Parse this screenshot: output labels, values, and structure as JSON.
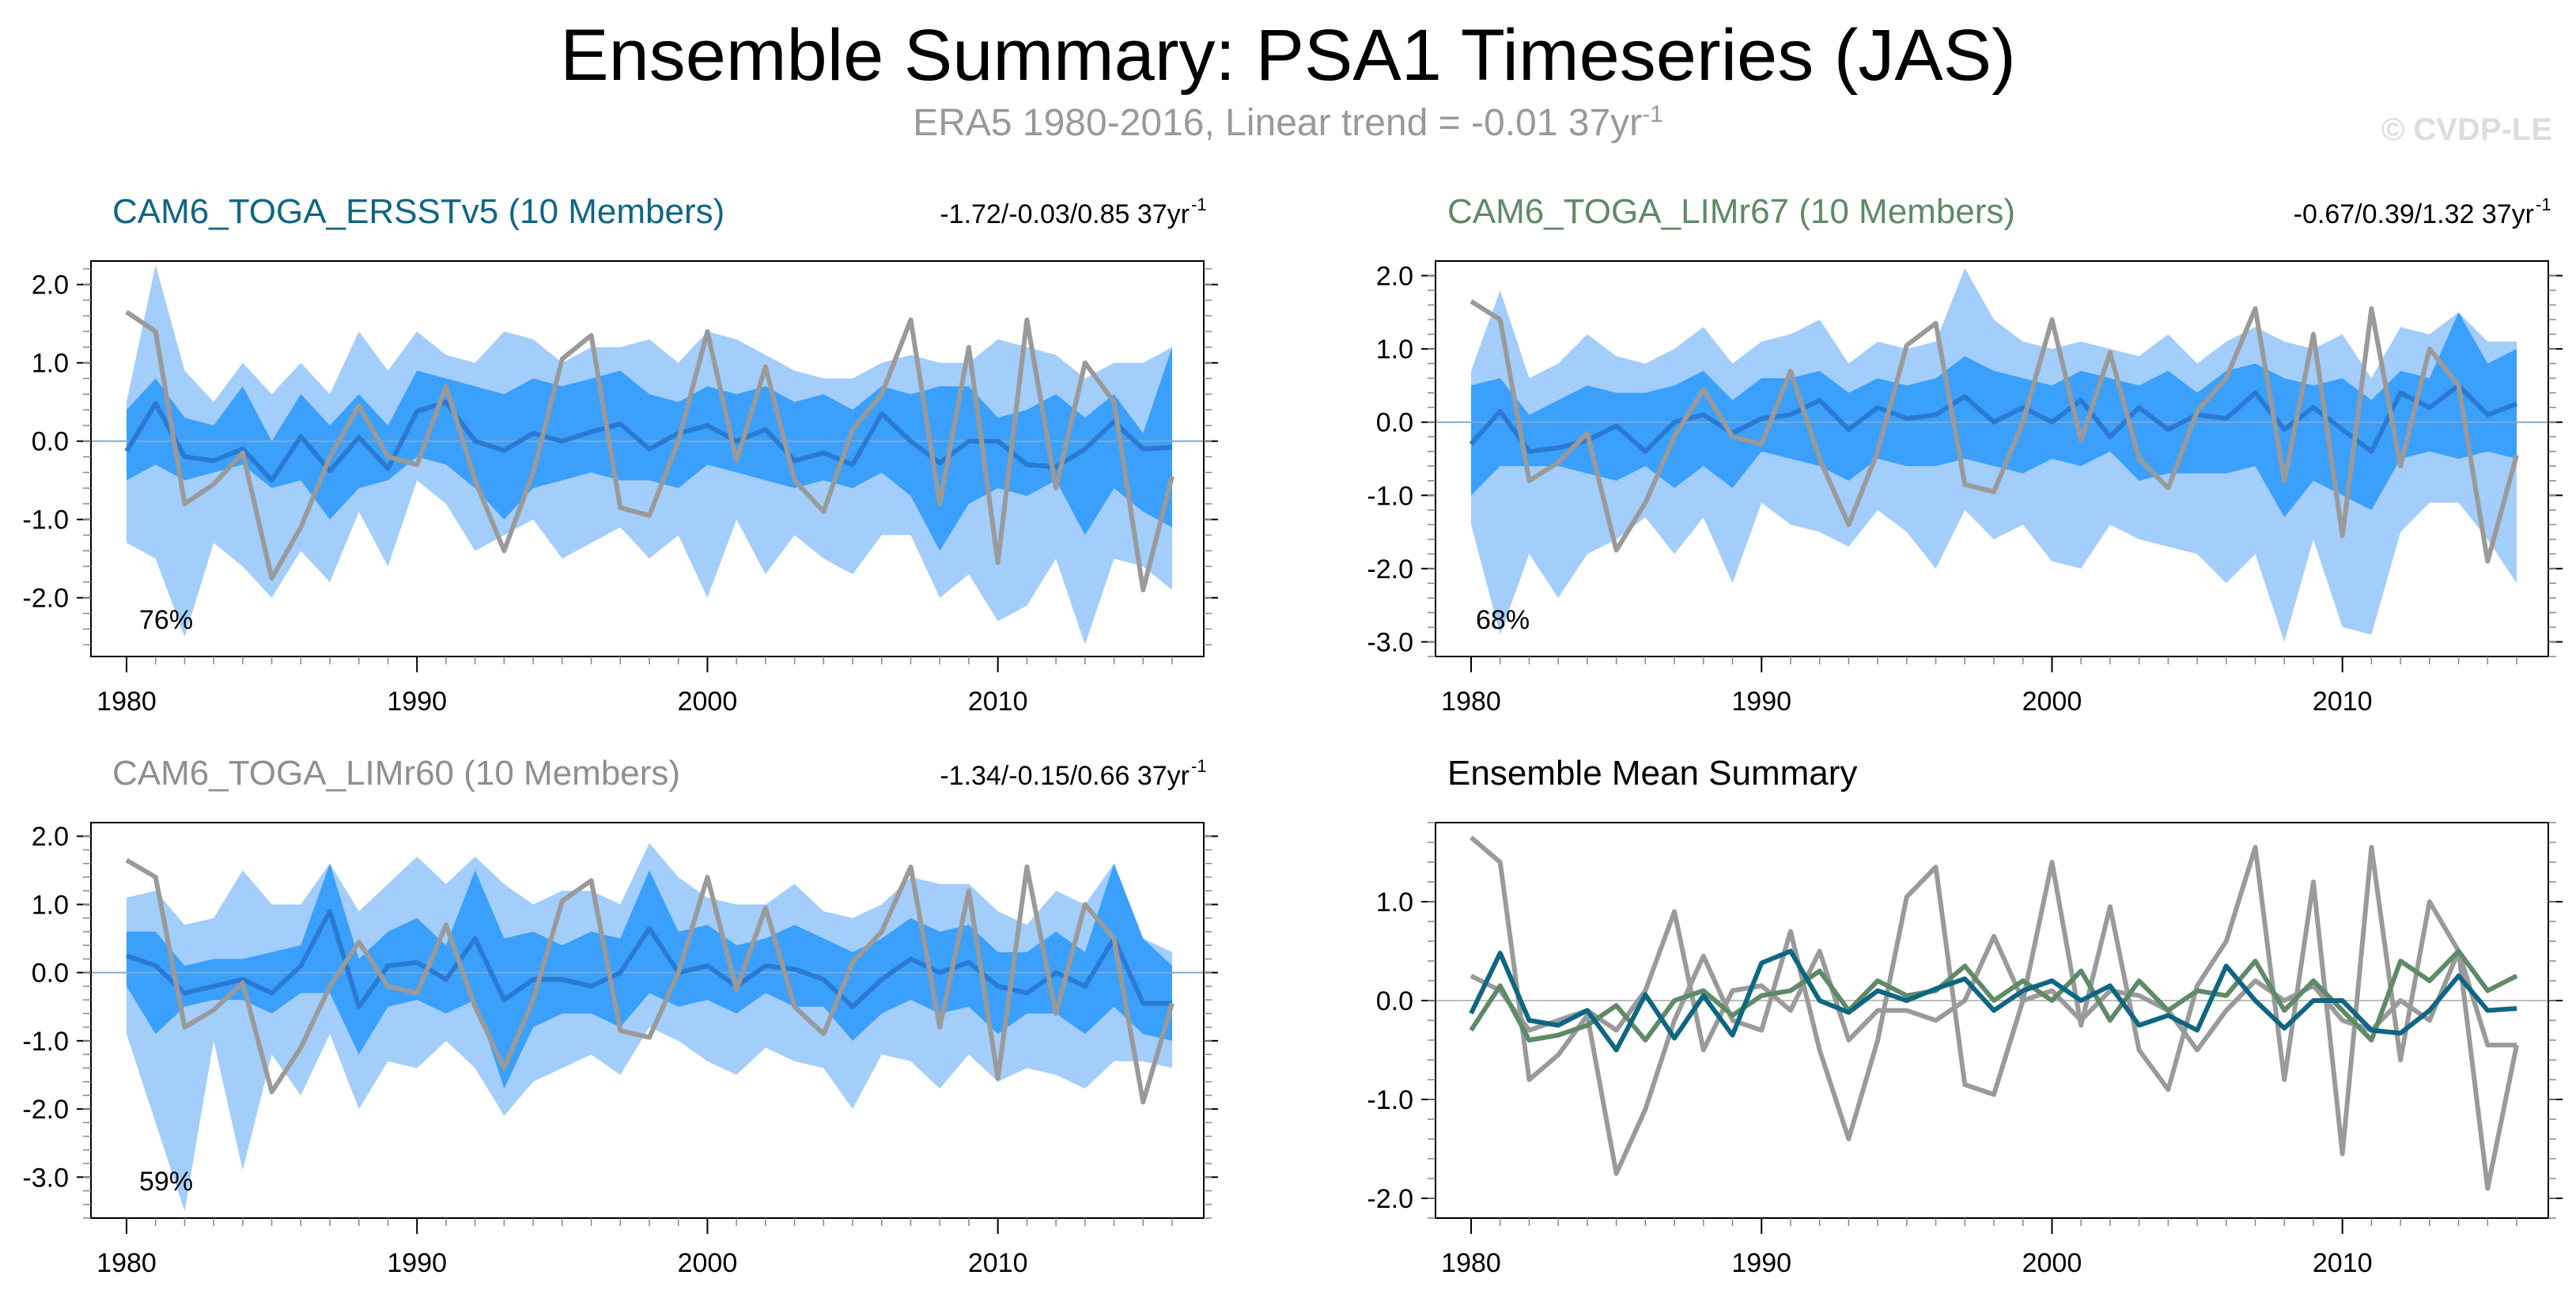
{
  "title": "Ensemble Summary: PSA1 Timeseries (JAS)",
  "subtitle": "ERA5 1980-2016, Linear trend = -0.01 37yr",
  "subtitle_sup": "-1",
  "copyright": "© CVDP-LE",
  "colors": {
    "light_band": "#a3cdfa",
    "dark_band": "#3aa0fb",
    "ens_mean": "#2a7ad4",
    "obs": "#9a9a9a",
    "ersst": "#0f6683",
    "limr67": "#5e8a67",
    "limr60": "#8f8f8f"
  },
  "chart_data": [
    {
      "id": "ersst",
      "type": "area",
      "title": "CAM6_TOGA_ERSSTv5 (10 Members)",
      "title_color": "#0f6683",
      "trend_text": "-1.72/-0.03/0.85 37yr",
      "trend_sup": "-1",
      "percent": "76%",
      "xlim": [
        1980,
        2016
      ],
      "ylim": [
        -2.75,
        2.3
      ],
      "xticks": [
        "1980",
        "1990",
        "2000",
        "2010"
      ],
      "yticks": [
        "2.0",
        "1.0",
        "0.0",
        "-1.0",
        "-2.0"
      ],
      "x": [
        1980,
        1981,
        1982,
        1983,
        1984,
        1985,
        1986,
        1987,
        1988,
        1989,
        1990,
        1991,
        1992,
        1993,
        1994,
        1995,
        1996,
        1997,
        1998,
        1999,
        2000,
        2001,
        2002,
        2003,
        2004,
        2005,
        2006,
        2007,
        2008,
        2009,
        2010,
        2011,
        2012,
        2013,
        2014,
        2015,
        2016
      ],
      "min": [
        -1.3,
        -1.5,
        -2.5,
        -1.3,
        -1.6,
        -2.0,
        -1.4,
        -1.8,
        -0.9,
        -1.6,
        -0.5,
        -0.8,
        -1.4,
        -1.2,
        -1.0,
        -1.5,
        -1.3,
        -1.1,
        -1.5,
        -1.2,
        -2.0,
        -1.0,
        -1.7,
        -1.2,
        -1.5,
        -1.7,
        -1.2,
        -1.2,
        -2.0,
        -1.7,
        -2.3,
        -2.1,
        -1.5,
        -2.6,
        -1.5,
        -1.6,
        -1.9
      ],
      "p10": [
        -0.5,
        -0.3,
        -0.5,
        -0.4,
        -0.3,
        -0.6,
        -0.5,
        -1.0,
        -0.6,
        -0.5,
        -0.2,
        -0.3,
        -0.6,
        -1.0,
        -0.6,
        -0.5,
        -0.4,
        -0.5,
        -0.5,
        -0.6,
        -0.3,
        -0.4,
        -0.5,
        -0.6,
        -0.5,
        -0.6,
        -0.4,
        -0.7,
        -1.4,
        -0.8,
        -0.6,
        -0.7,
        -0.5,
        -1.2,
        -0.6,
        -0.9,
        -1.1
      ],
      "p90": [
        0.4,
        0.8,
        0.3,
        0.2,
        0.7,
        0.0,
        0.6,
        0.2,
        0.6,
        0.2,
        0.9,
        0.8,
        0.7,
        0.6,
        0.8,
        0.7,
        0.8,
        0.9,
        0.6,
        0.5,
        0.7,
        0.6,
        0.7,
        0.5,
        0.6,
        0.4,
        0.7,
        0.6,
        0.7,
        0.7,
        0.3,
        0.4,
        0.6,
        0.3,
        0.6,
        0.1,
        1.2
      ],
      "max": [
        0.5,
        2.25,
        0.9,
        0.5,
        1.0,
        0.6,
        1.0,
        0.6,
        1.4,
        0.9,
        1.4,
        1.1,
        1.0,
        1.4,
        1.3,
        1.0,
        1.2,
        1.2,
        1.3,
        1.0,
        1.4,
        1.3,
        1.1,
        0.9,
        0.8,
        0.8,
        1.0,
        1.1,
        1.0,
        1.0,
        1.3,
        1.2,
        1.1,
        0.8,
        1.0,
        1.0,
        1.2
      ],
      "mean": [
        -0.13,
        0.48,
        -0.2,
        -0.25,
        -0.1,
        -0.5,
        0.06,
        -0.38,
        0.05,
        -0.35,
        0.38,
        0.5,
        0.0,
        -0.12,
        0.1,
        0.0,
        0.12,
        0.22,
        -0.1,
        0.1,
        0.2,
        0.0,
        0.15,
        -0.25,
        -0.15,
        -0.3,
        0.35,
        0.0,
        -0.28,
        0.0,
        0.0,
        -0.3,
        -0.33,
        -0.1,
        0.25,
        -0.1,
        -0.08
      ],
      "obs": [
        1.65,
        1.4,
        -0.8,
        -0.55,
        -0.15,
        -1.75,
        -1.1,
        -0.2,
        0.45,
        -0.2,
        -0.3,
        0.7,
        -0.5,
        -1.4,
        -0.4,
        1.05,
        1.35,
        -0.85,
        -0.95,
        0.0,
        1.4,
        -0.25,
        0.95,
        -0.5,
        -0.9,
        0.15,
        0.6,
        1.55,
        -0.8,
        1.2,
        -1.55,
        1.55,
        -0.6,
        1.0,
        0.5,
        -1.9,
        -0.45
      ]
    },
    {
      "id": "limr67",
      "type": "area",
      "title": "CAM6_TOGA_LIMr67 (10 Members)",
      "title_color": "#5e8a67",
      "trend_text": "-0.67/0.39/1.32 37yr",
      "trend_sup": "-1",
      "percent": "68%",
      "xlim": [
        1980,
        2016
      ],
      "ylim": [
        -3.2,
        2.2
      ],
      "xticks": [
        "1980",
        "1990",
        "2000",
        "2010"
      ],
      "yticks": [
        "2.0",
        "1.0",
        "0.0",
        "-1.0",
        "-2.0",
        "-3.0"
      ],
      "x": [
        1980,
        1981,
        1982,
        1983,
        1984,
        1985,
        1986,
        1987,
        1988,
        1989,
        1990,
        1991,
        1992,
        1993,
        1994,
        1995,
        1996,
        1997,
        1998,
        1999,
        2000,
        2001,
        2002,
        2003,
        2004,
        2005,
        2006,
        2007,
        2008,
        2009,
        2010,
        2011,
        2012,
        2013,
        2014,
        2015,
        2016
      ],
      "min": [
        -1.4,
        -2.9,
        -1.8,
        -2.4,
        -1.8,
        -1.6,
        -1.3,
        -1.8,
        -1.3,
        -2.2,
        -1.1,
        -1.4,
        -1.5,
        -1.7,
        -1.2,
        -1.5,
        -2.0,
        -1.2,
        -1.6,
        -1.4,
        -1.9,
        -2.0,
        -1.4,
        -1.6,
        -1.7,
        -1.8,
        -2.2,
        -1.8,
        -3.0,
        -1.6,
        -2.8,
        -2.9,
        -1.5,
        -1.1,
        -1.1,
        -1.6,
        -2.2
      ],
      "p10": [
        -1.0,
        -0.6,
        -0.6,
        -0.6,
        -0.7,
        -0.8,
        -0.6,
        -0.9,
        -0.6,
        -0.9,
        -0.4,
        -0.5,
        -0.6,
        -0.8,
        -0.5,
        -0.6,
        -0.6,
        -0.5,
        -0.6,
        -0.7,
        -0.5,
        -0.6,
        -0.4,
        -0.8,
        -0.7,
        -0.7,
        -0.7,
        -0.6,
        -1.3,
        -0.8,
        -1.0,
        -1.2,
        -0.5,
        -0.4,
        -0.5,
        -0.4,
        -0.5
      ],
      "p90": [
        0.5,
        0.6,
        0.1,
        0.3,
        0.5,
        0.4,
        0.4,
        0.5,
        0.7,
        0.3,
        0.6,
        0.6,
        0.7,
        0.4,
        0.6,
        0.5,
        0.6,
        0.9,
        0.7,
        0.6,
        0.5,
        0.7,
        0.6,
        0.5,
        0.7,
        0.4,
        0.7,
        0.8,
        0.6,
        0.5,
        0.6,
        0.3,
        0.7,
        0.6,
        1.5,
        0.8,
        1.0
      ],
      "max": [
        0.7,
        1.8,
        0.6,
        0.8,
        1.2,
        0.9,
        0.8,
        1.0,
        1.3,
        0.8,
        1.1,
        1.2,
        1.4,
        0.8,
        1.1,
        1.0,
        1.1,
        2.1,
        1.4,
        1.1,
        1.0,
        1.1,
        1.0,
        0.9,
        1.2,
        0.8,
        1.1,
        1.3,
        1.1,
        1.0,
        1.2,
        0.6,
        1.3,
        1.2,
        1.5,
        1.1,
        1.1
      ],
      "mean": [
        -0.3,
        0.15,
        -0.4,
        -0.35,
        -0.25,
        -0.05,
        -0.4,
        0.0,
        0.1,
        -0.15,
        0.05,
        0.1,
        0.3,
        -0.1,
        0.2,
        0.05,
        0.1,
        0.35,
        0.0,
        0.2,
        0.0,
        0.3,
        -0.2,
        0.2,
        -0.1,
        0.1,
        0.05,
        0.4,
        -0.1,
        0.2,
        -0.1,
        -0.4,
        0.4,
        0.2,
        0.5,
        0.1,
        0.25
      ],
      "obs": [
        1.65,
        1.4,
        -0.8,
        -0.55,
        -0.15,
        -1.75,
        -1.1,
        -0.2,
        0.45,
        -0.2,
        -0.3,
        0.7,
        -0.5,
        -1.4,
        -0.4,
        1.05,
        1.35,
        -0.85,
        -0.95,
        0.0,
        1.4,
        -0.25,
        0.95,
        -0.5,
        -0.9,
        0.15,
        0.6,
        1.55,
        -0.8,
        1.2,
        -1.55,
        1.55,
        -0.6,
        1.0,
        0.5,
        -1.9,
        -0.45
      ]
    },
    {
      "id": "limr60",
      "type": "area",
      "title": "CAM6_TOGA_LIMr60 (10 Members)",
      "title_color": "#8f8f8f",
      "trend_text": "-1.34/-0.15/0.66 37yr",
      "trend_sup": "-1",
      "percent": "59%",
      "xlim": [
        1980,
        2016
      ],
      "ylim": [
        -3.6,
        2.2
      ],
      "xticks": [
        "1980",
        "1990",
        "2000",
        "2010"
      ],
      "yticks": [
        "2.0",
        "1.0",
        "0.0",
        "-1.0",
        "-2.0",
        "-3.0"
      ],
      "x": [
        1980,
        1981,
        1982,
        1983,
        1984,
        1985,
        1986,
        1987,
        1988,
        1989,
        1990,
        1991,
        1992,
        1993,
        1994,
        1995,
        1996,
        1997,
        1998,
        1999,
        2000,
        2001,
        2002,
        2003,
        2004,
        2005,
        2006,
        2007,
        2008,
        2009,
        2010,
        2011,
        2012,
        2013,
        2014,
        2015,
        2016
      ],
      "min": [
        -0.9,
        -2.2,
        -3.5,
        -1.0,
        -2.9,
        -1.2,
        -1.8,
        -0.9,
        -2.0,
        -1.3,
        -1.4,
        -1.0,
        -1.4,
        -2.1,
        -1.6,
        -1.4,
        -1.2,
        -1.5,
        -0.8,
        -1.0,
        -1.3,
        -1.5,
        -1.1,
        -1.3,
        -1.4,
        -2.0,
        -1.2,
        -1.3,
        -1.7,
        -1.2,
        -1.6,
        -1.4,
        -1.5,
        -1.7,
        -1.3,
        -1.3,
        -1.4
      ],
      "p10": [
        -0.2,
        -0.9,
        -0.5,
        -0.4,
        -0.4,
        -0.6,
        -0.3,
        -0.3,
        -1.2,
        -0.5,
        -0.4,
        -0.6,
        -0.4,
        -1.7,
        -0.8,
        -0.6,
        -0.6,
        -0.8,
        -0.3,
        -0.5,
        -0.4,
        -0.6,
        -0.3,
        -0.5,
        -0.5,
        -1.0,
        -0.6,
        -0.4,
        -0.6,
        -0.5,
        -0.9,
        -0.6,
        -0.6,
        -0.9,
        -0.5,
        -0.9,
        -1.0
      ],
      "p90": [
        0.6,
        0.6,
        0.1,
        0.2,
        0.2,
        0.3,
        0.4,
        1.6,
        0.2,
        0.6,
        0.8,
        0.4,
        1.5,
        0.5,
        0.6,
        0.4,
        0.6,
        0.5,
        1.5,
        0.6,
        0.7,
        0.4,
        0.5,
        0.7,
        0.5,
        0.3,
        0.5,
        0.8,
        0.6,
        0.7,
        0.3,
        0.3,
        0.6,
        0.3,
        1.6,
        0.5,
        0.1
      ],
      "max": [
        1.1,
        1.2,
        0.7,
        0.8,
        1.5,
        1.0,
        1.0,
        1.6,
        0.9,
        1.3,
        1.7,
        1.3,
        1.7,
        1.3,
        1.0,
        1.2,
        1.2,
        1.0,
        1.9,
        1.4,
        1.1,
        1.0,
        1.0,
        1.3,
        0.9,
        0.8,
        1.0,
        1.4,
        1.3,
        1.3,
        0.9,
        0.7,
        1.2,
        1.0,
        1.6,
        0.5,
        0.3
      ],
      "mean": [
        0.25,
        0.1,
        -0.3,
        -0.2,
        -0.1,
        -0.3,
        0.1,
        0.9,
        -0.5,
        0.1,
        0.15,
        -0.1,
        0.5,
        -0.4,
        -0.1,
        -0.1,
        -0.2,
        0.0,
        0.65,
        0.0,
        0.1,
        -0.2,
        0.1,
        0.05,
        -0.1,
        -0.5,
        -0.1,
        0.2,
        0.0,
        0.15,
        -0.2,
        -0.3,
        0.0,
        -0.2,
        0.5,
        -0.45,
        -0.45
      ],
      "obs": [
        1.65,
        1.4,
        -0.8,
        -0.55,
        -0.15,
        -1.75,
        -1.1,
        -0.2,
        0.45,
        -0.2,
        -0.3,
        0.7,
        -0.5,
        -1.4,
        -0.4,
        1.05,
        1.35,
        -0.85,
        -0.95,
        0.0,
        1.4,
        -0.25,
        0.95,
        -0.5,
        -0.9,
        0.15,
        0.6,
        1.55,
        -0.8,
        1.2,
        -1.55,
        1.55,
        -0.6,
        1.0,
        0.5,
        -1.9,
        -0.45
      ]
    },
    {
      "id": "summary",
      "type": "line",
      "title": "Ensemble Mean Summary",
      "title_color": "#000000",
      "xlim": [
        1980,
        2016
      ],
      "ylim": [
        -2.2,
        1.8
      ],
      "xticks": [
        "1980",
        "1990",
        "2000",
        "2010"
      ],
      "yticks": [
        "1.0",
        "0.0",
        "-1.0",
        "-2.0"
      ],
      "x": [
        1980,
        1981,
        1982,
        1983,
        1984,
        1985,
        1986,
        1987,
        1988,
        1989,
        1990,
        1991,
        1992,
        1993,
        1994,
        1995,
        1996,
        1997,
        1998,
        1999,
        2000,
        2001,
        2002,
        2003,
        2004,
        2005,
        2006,
        2007,
        2008,
        2009,
        2010,
        2011,
        2012,
        2013,
        2014,
        2015,
        2016
      ],
      "series": [
        {
          "name": "ERA5",
          "color": "#9a9a9a",
          "values": [
            1.65,
            1.4,
            -0.8,
            -0.55,
            -0.15,
            -1.75,
            -1.1,
            -0.2,
            0.45,
            -0.2,
            -0.3,
            0.7,
            -0.5,
            -1.4,
            -0.4,
            1.05,
            1.35,
            -0.85,
            -0.95,
            0.0,
            1.4,
            -0.25,
            0.95,
            -0.5,
            -0.9,
            0.15,
            0.6,
            1.55,
            -0.8,
            1.2,
            -1.55,
            1.55,
            -0.6,
            1.0,
            0.5,
            -1.9,
            -0.45
          ]
        },
        {
          "name": "CAM6_TOGA_LIMr60",
          "color": "#9a9a9a",
          "values": [
            0.25,
            0.1,
            -0.3,
            -0.2,
            -0.1,
            -0.3,
            0.1,
            0.9,
            -0.5,
            0.1,
            0.15,
            -0.1,
            0.5,
            -0.4,
            -0.1,
            -0.1,
            -0.2,
            0.0,
            0.65,
            0.0,
            0.1,
            -0.2,
            0.1,
            0.05,
            -0.1,
            -0.5,
            -0.1,
            0.2,
            0.0,
            0.15,
            -0.2,
            -0.3,
            0.0,
            -0.2,
            0.5,
            -0.45,
            -0.45
          ]
        },
        {
          "name": "CAM6_TOGA_LIMr67",
          "color": "#5e8a67",
          "values": [
            -0.3,
            0.15,
            -0.4,
            -0.35,
            -0.25,
            -0.05,
            -0.4,
            0.0,
            0.1,
            -0.15,
            0.05,
            0.1,
            0.3,
            -0.1,
            0.2,
            0.05,
            0.1,
            0.35,
            0.0,
            0.2,
            0.0,
            0.3,
            -0.2,
            0.2,
            -0.1,
            0.1,
            0.05,
            0.4,
            -0.1,
            0.2,
            -0.1,
            -0.4,
            0.4,
            0.2,
            0.5,
            0.1,
            0.25
          ]
        },
        {
          "name": "CAM6_TOGA_ERSSTv5",
          "color": "#0f6683",
          "values": [
            -0.13,
            0.48,
            -0.2,
            -0.25,
            -0.1,
            -0.5,
            0.06,
            -0.38,
            0.05,
            -0.35,
            0.38,
            0.5,
            0.0,
            -0.12,
            0.1,
            0.0,
            0.12,
            0.22,
            -0.1,
            0.1,
            0.2,
            0.0,
            0.15,
            -0.25,
            -0.15,
            -0.3,
            0.35,
            0.0,
            -0.28,
            0.0,
            0.0,
            -0.3,
            -0.33,
            -0.1,
            0.25,
            -0.1,
            -0.08
          ]
        }
      ]
    }
  ]
}
